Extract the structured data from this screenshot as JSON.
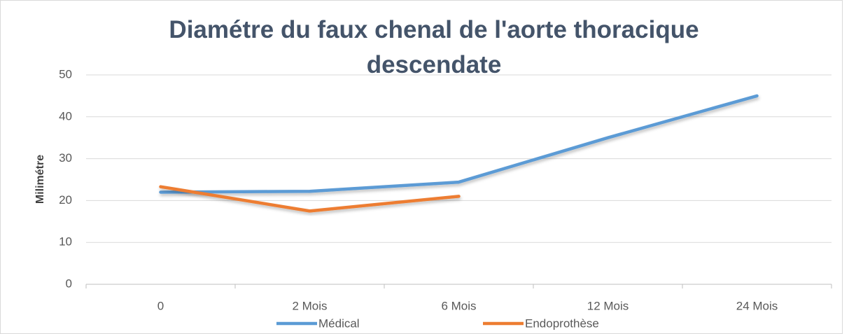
{
  "chart_data": {
    "type": "line",
    "title": "Diamétre du faux chenal de l'aorte thoracique descendate",
    "y_label": "Milimétre",
    "categories": [
      "0",
      "2 Mois",
      "6 Mois",
      "12 Mois",
      "24 Mois"
    ],
    "series": [
      {
        "name": "Médical",
        "color": "#5b9bd5",
        "values": [
          22,
          22.2,
          24.4,
          35,
          45
        ]
      },
      {
        "name": "Endoprothèse",
        "color": "#ed7d31",
        "values": [
          23.3,
          17.5,
          21,
          null,
          null
        ]
      }
    ],
    "ylim": [
      0,
      50
    ],
    "yticks": [
      0,
      10,
      20,
      30,
      40,
      50
    ],
    "grid": true,
    "legend": "bottom"
  }
}
